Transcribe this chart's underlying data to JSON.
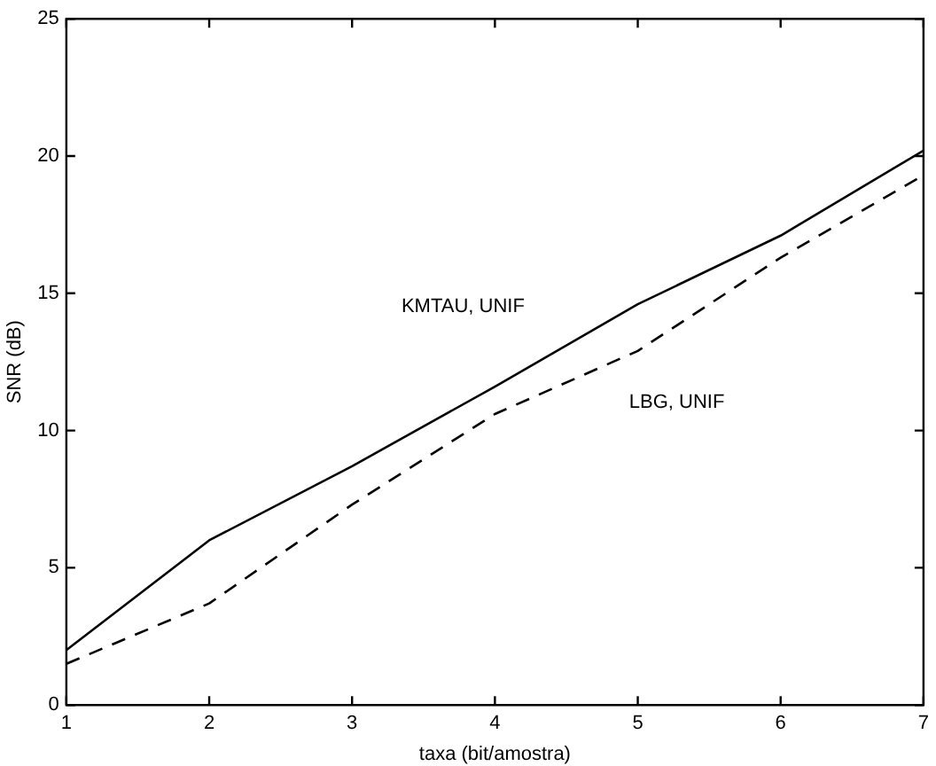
{
  "chart_data": {
    "type": "line",
    "xlabel": "taxa (bit/amostra)",
    "ylabel": "SNR (dB)",
    "x": [
      1,
      2,
      3,
      4,
      5,
      6,
      7
    ],
    "series": [
      {
        "name": "KMTAU, UNIF",
        "color": "#000000",
        "line_style": "solid",
        "values": [
          2.0,
          6.0,
          8.7,
          11.6,
          14.6,
          17.1,
          20.2
        ]
      },
      {
        "name": "LBG, UNIF",
        "color": "#000000",
        "line_style": "dashed",
        "values": [
          1.5,
          3.7,
          7.3,
          10.6,
          12.9,
          16.3,
          19.3
        ]
      }
    ],
    "xlim": [
      1,
      7
    ],
    "xticks": [
      1,
      2,
      3,
      4,
      5,
      6,
      7
    ],
    "ylim": [
      0,
      25
    ],
    "yticks": [
      0,
      5,
      10,
      15,
      20,
      25
    ],
    "grid": false,
    "legend": false,
    "marker": "none"
  }
}
